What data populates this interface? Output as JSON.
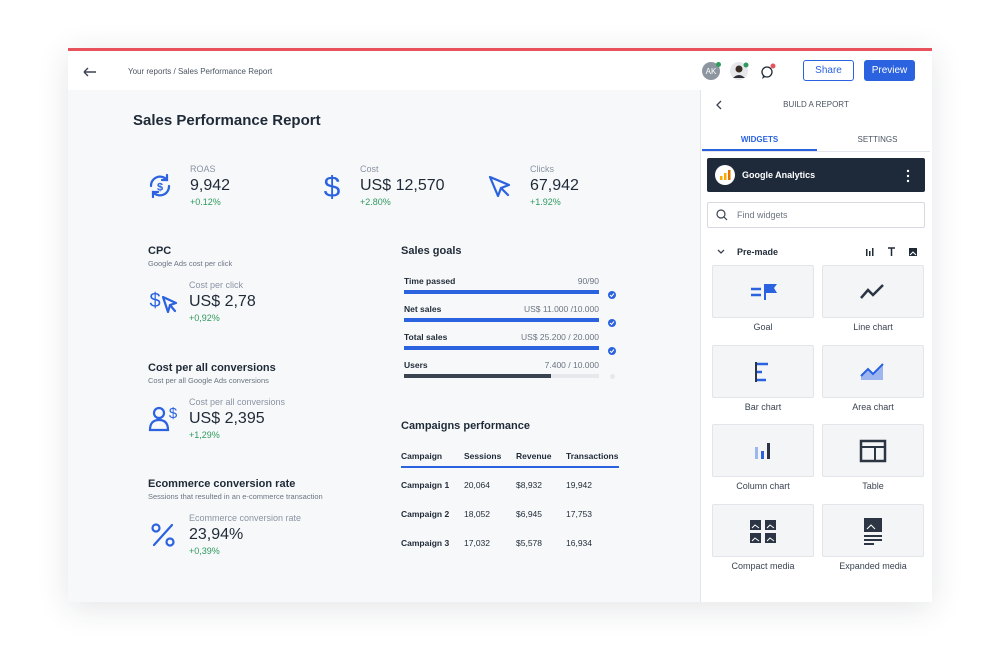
{
  "header": {
    "breadcrumb": "Your reports / Sales Performance Report",
    "avatar": "AK",
    "share": "Share",
    "preview": "Preview"
  },
  "report": {
    "title": "Sales Performance Report",
    "kpis": [
      {
        "label": "ROAS",
        "value": "9,942",
        "change": "+0.12%"
      },
      {
        "label": "Cost",
        "value": "US$ 12,570",
        "change": "+2.80%"
      },
      {
        "label": "Clicks",
        "value": "67,942",
        "change": "+1.92%"
      }
    ],
    "metrics": [
      {
        "title": "CPC",
        "subtitle": "Google Ads cost per click",
        "label": "Cost per click",
        "value": "US$ 2,78",
        "change": "+0,92%"
      },
      {
        "title": "Cost per all conversions",
        "subtitle": "Cost per all Google Ads conversions",
        "label": "Cost per all conversions",
        "value": "US$ 2,395",
        "change": "+1,29%"
      },
      {
        "title": "Ecommerce conversion rate",
        "subtitle": "Sessions that resulted in an e-commerce transaction",
        "label": "Ecommerce conversion rate",
        "value": "23,94%",
        "change": "+0,39%"
      }
    ],
    "sales_goals": {
      "title": "Sales goals",
      "items": [
        {
          "name": "Time passed",
          "value": "90/90"
        },
        {
          "name": "Net sales",
          "value": "US$ 11.000 /10.000"
        },
        {
          "name": "Total sales",
          "value": "US$ 25.200 / 20.000"
        },
        {
          "name": "Users",
          "value": "7.400 / 10.000"
        }
      ]
    },
    "campaigns": {
      "title": "Campaigns performance",
      "columns": [
        "Campaign",
        "Sessions",
        "Revenue",
        "Transactions"
      ],
      "rows": [
        [
          "Campaign 1",
          "20,064",
          "$8,932",
          "19,942"
        ],
        [
          "Campaign 2",
          "18,052",
          "$6,945",
          "17,753"
        ],
        [
          "Campaign 3",
          "17,032",
          "$5,578",
          "16,934"
        ]
      ]
    }
  },
  "panel": {
    "title": "BUILD A REPORT",
    "tabs": [
      "WIDGETS",
      "SETTINGS"
    ],
    "source": "Google Analytics",
    "search_placeholder": "Find widgets",
    "section": "Pre-made",
    "widgets": [
      "Goal",
      "Line chart",
      "Bar chart",
      "Area chart",
      "Column chart",
      "Table",
      "Compact media",
      "Expanded media"
    ]
  }
}
